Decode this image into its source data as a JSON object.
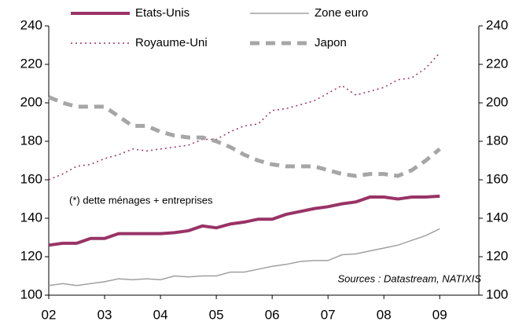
{
  "chart_data": {
    "type": "line",
    "x": [
      2002,
      2002.25,
      2002.5,
      2002.75,
      2003,
      2003.25,
      2003.5,
      2003.75,
      2004,
      2004.25,
      2004.5,
      2004.75,
      2005,
      2005.25,
      2005.5,
      2005.75,
      2006,
      2006.25,
      2006.5,
      2006.75,
      2007,
      2007.25,
      2007.5,
      2007.75,
      2008,
      2008.25,
      2008.5,
      2008.75,
      2009
    ],
    "series": [
      {
        "name": "Etats-Unis",
        "color": "#993366",
        "style": "solid",
        "width": 4,
        "values": [
          126,
          127,
          127,
          129.5,
          129.5,
          132,
          132,
          132,
          132,
          132.5,
          133.5,
          136,
          135,
          137,
          138,
          139.5,
          139.5,
          142,
          143.5,
          145,
          146,
          147.5,
          148.5,
          151,
          151,
          150,
          151,
          151,
          151.5
        ]
      },
      {
        "name": "Zone euro",
        "color": "#a0a0a0",
        "style": "solid",
        "width": 1.5,
        "values": [
          105,
          106,
          105,
          106,
          107,
          108.5,
          108,
          108.5,
          108,
          110,
          109.5,
          110,
          110,
          112,
          112,
          113.5,
          115,
          116,
          117.5,
          118,
          118,
          121,
          121.5,
          123,
          124.5,
          126,
          128.5,
          131,
          134.5
        ]
      },
      {
        "name": "Royaume-Uni",
        "color": "#993366",
        "style": "dotted",
        "width": 1.5,
        "values": [
          160,
          163,
          167,
          168,
          171,
          173,
          176,
          175,
          176,
          177,
          178,
          181,
          181,
          185,
          188,
          189,
          196,
          197,
          199,
          201,
          205,
          209,
          204,
          206,
          208,
          212,
          213,
          218,
          226
        ]
      },
      {
        "name": "Japon",
        "color": "#a6a6a6",
        "style": "dashed",
        "width": 5,
        "values": [
          203,
          200,
          198,
          198,
          198,
          193,
          188,
          188,
          185,
          183,
          182,
          182,
          180,
          177,
          173,
          170,
          168,
          167,
          167,
          167,
          165,
          163,
          162,
          163,
          163,
          162,
          165,
          170,
          176
        ]
      }
    ],
    "xlim": [
      2002,
      2009.7
    ],
    "xticks": [
      {
        "value": 2002,
        "label": "02"
      },
      {
        "value": 2003,
        "label": "03"
      },
      {
        "value": 2004,
        "label": "04"
      },
      {
        "value": 2005,
        "label": "05"
      },
      {
        "value": 2006,
        "label": "06"
      },
      {
        "value": 2007,
        "label": "07"
      },
      {
        "value": 2008,
        "label": "08"
      },
      {
        "value": 2009,
        "label": "09"
      }
    ],
    "ylim": [
      100,
      240
    ],
    "yticks": [
      100,
      120,
      140,
      160,
      180,
      200,
      220,
      240
    ],
    "y2lim": [
      100,
      240
    ],
    "y2ticks": [
      100,
      120,
      140,
      160,
      180,
      200,
      220,
      240
    ],
    "annotations": [
      "(*) dette ménages + entreprises",
      "Sources : Datastream, NATIXIS"
    ]
  }
}
